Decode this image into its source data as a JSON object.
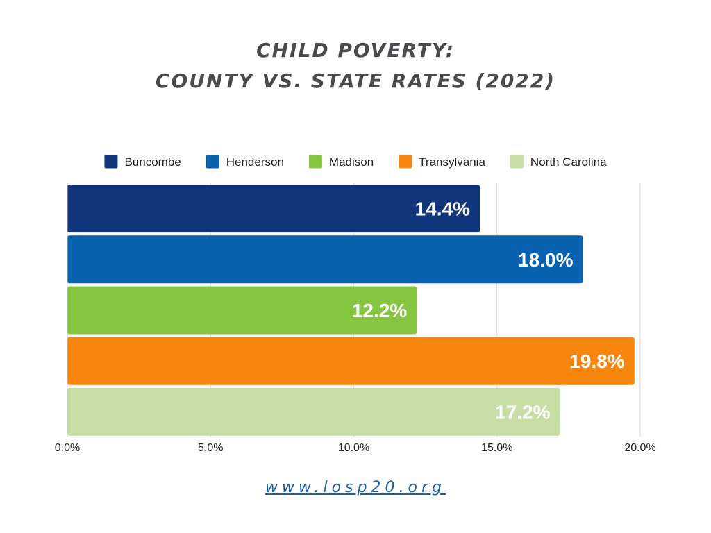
{
  "title_line1": "CHILD POVERTY:",
  "title_line2": "COUNTY VS. STATE RATES (2022)",
  "footer_link": "www.losp20.org",
  "chart_data": {
    "type": "bar",
    "orientation": "horizontal",
    "categories": [
      "Buncombe",
      "Henderson",
      "Madison",
      "Transylvania",
      "North Carolina"
    ],
    "values": [
      14.4,
      18.0,
      12.2,
      19.8,
      17.2
    ],
    "data_labels": [
      "14.4%",
      "18.0%",
      "12.2%",
      "19.8%",
      "17.2%"
    ],
    "colors": [
      "#10357a",
      "#0a62ae",
      "#86c540",
      "#f7860f",
      "#c7dea5"
    ],
    "xlim": [
      0,
      20
    ],
    "x_ticks": [
      0,
      5,
      10,
      15,
      20
    ],
    "x_tick_labels": [
      "0.0%",
      "5.0%",
      "10.0%",
      "15.0%",
      "20.0%"
    ],
    "grid": true,
    "legend_position": "top"
  }
}
